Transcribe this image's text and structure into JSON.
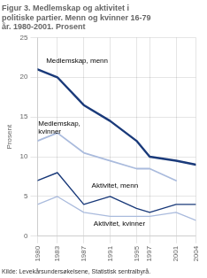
{
  "chart_data": {
    "type": "line",
    "title": "Figur 3. Medlemskap og aktivitet i\npolitiske partier. Menn og kvinner 16-79\når. 1980-2001. Prosent",
    "ylabel": "Prosent",
    "source": "Kilde: Levekårsundersøkelsene, Statistisk sentralbyrå.",
    "x": [
      1980,
      1983,
      1987,
      1991,
      1995,
      1997,
      2001,
      2004
    ],
    "series": [
      {
        "name": "Medlemskap, menn",
        "color": "#1a3a7a",
        "values": [
          21,
          20,
          16.5,
          14.5,
          12,
          10,
          9.5,
          9
        ]
      },
      {
        "name": "Medlemskap, kvinner",
        "color": "#aabbdd",
        "values": [
          12,
          13,
          10.5,
          9.5,
          8.5,
          8.5,
          7.0,
          null
        ]
      },
      {
        "name": "Aktivitet, menn",
        "color": "#1a3a7a",
        "values": [
          7,
          8,
          4,
          5,
          3.5,
          3,
          4,
          4
        ]
      },
      {
        "name": "Aktivitet, kvinner",
        "color": "#aabbdd",
        "values": [
          4,
          5,
          3,
          2.5,
          2.5,
          2.5,
          3.0,
          2.0
        ]
      }
    ],
    "xlim": [
      1980,
      2004
    ],
    "xticks": [
      1980,
      1983,
      1987,
      1991,
      1995,
      1997,
      2001,
      2004
    ],
    "ylim": [
      0,
      25
    ],
    "yticks": [
      0,
      5,
      10,
      15,
      20,
      25
    ],
    "grid": true,
    "annotations": [
      {
        "text": "Medlemskap, menn",
        "x": 1981.3,
        "y": 21.5
      },
      {
        "text": "Medlemskap,\nkvinner",
        "x": 1980.1,
        "y": 14.6
      },
      {
        "text": "Aktivitet, menn",
        "x": 1988.2,
        "y": 5.8
      },
      {
        "text": "Aktivitet, kvinner",
        "x": 1988.5,
        "y": 1.05
      }
    ]
  }
}
